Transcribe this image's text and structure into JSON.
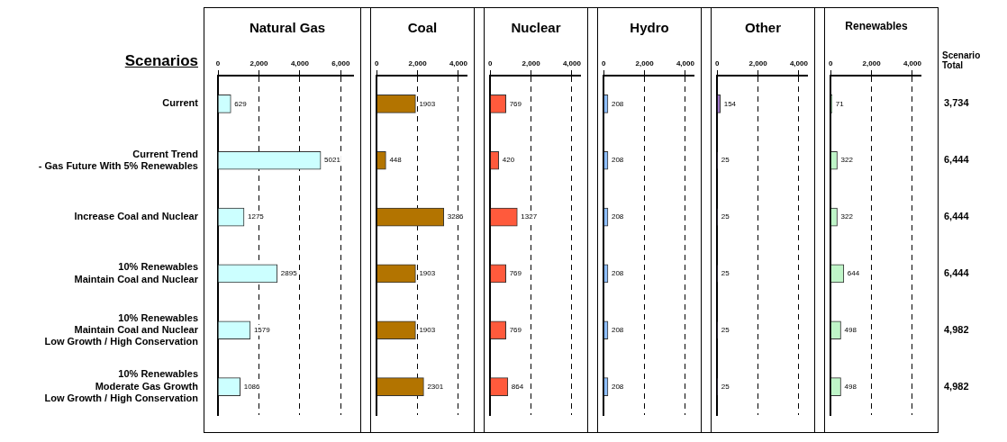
{
  "chart_data": [
    {
      "type": "bar",
      "orientation": "horizontal",
      "title": "Natural Gas",
      "ylabel": "Scenarios",
      "categories": [
        "Current",
        "Current Trend\n- Gas Future With 5% Renewables",
        "Increase Coal and Nuclear",
        "10% Renewables\nMaintain Coal and Nuclear",
        "10% Renewables\nMaintain Coal and Nuclear\nLow Growth / High Conservation",
        "10% Renewables\nModerate Gas Growth\nLow Growth / High Conservation"
      ],
      "values": [
        629,
        5021,
        1275,
        2895,
        1579,
        1086
      ],
      "color": "#ccffff",
      "xlim": [
        0,
        6600
      ],
      "xticks": [
        {
          "value": 0,
          "label": "0"
        },
        {
          "value": 2000,
          "label": "2,000"
        },
        {
          "value": 4000,
          "label": "4,000"
        },
        {
          "value": 6000,
          "label": "6,000"
        }
      ],
      "grid": "x",
      "data_labels": true
    },
    {
      "type": "bar",
      "orientation": "horizontal",
      "title": "Coal",
      "categories": [
        null,
        null,
        null,
        null,
        null,
        null
      ],
      "values": [
        1903,
        448,
        3286,
        1903,
        1903,
        2301
      ],
      "color": "#b37400",
      "xlim": [
        0,
        4400
      ],
      "xticks": [
        {
          "value": 0,
          "label": "0"
        },
        {
          "value": 2000,
          "label": "2,000"
        },
        {
          "value": 4000,
          "label": "4,000"
        }
      ],
      "grid": "x",
      "data_labels": true,
      "tick_labels": "x"
    },
    {
      "type": "bar",
      "orientation": "horizontal",
      "title": "Nuclear",
      "categories": [
        null,
        null,
        null,
        null,
        null,
        null
      ],
      "values": [
        769,
        420,
        1327,
        769,
        769,
        864
      ],
      "color": "#ff5a3c",
      "xlim": [
        0,
        4400
      ],
      "xticks": [
        {
          "value": 0,
          "label": "0"
        },
        {
          "value": 2000,
          "label": "2,000"
        },
        {
          "value": 4000,
          "label": "4,000"
        }
      ],
      "grid": "x",
      "data_labels": true,
      "tick_labels": "x"
    },
    {
      "type": "bar",
      "orientation": "horizontal",
      "title": "Hydro",
      "categories": [
        null,
        null,
        null,
        null,
        null,
        null
      ],
      "values": [
        208,
        208,
        208,
        208,
        208,
        208
      ],
      "color": "#8fbfff",
      "xlim": [
        0,
        4400
      ],
      "xticks": [
        {
          "value": 0,
          "label": "0"
        },
        {
          "value": 2000,
          "label": "2,000"
        },
        {
          "value": 4000,
          "label": "4,000"
        }
      ],
      "grid": "x",
      "data_labels": true,
      "tick_labels": "x"
    },
    {
      "type": "bar",
      "orientation": "horizontal",
      "title": "Other",
      "categories": [
        null,
        null,
        null,
        null,
        null,
        null
      ],
      "values": [
        154,
        25,
        25,
        25,
        25,
        25
      ],
      "color": "#a77fd0",
      "xlim": [
        0,
        4400
      ],
      "xticks": [
        {
          "value": 0,
          "label": "0"
        },
        {
          "value": 2000,
          "label": "2,000"
        },
        {
          "value": 4000,
          "label": "4,000"
        }
      ],
      "grid": "x",
      "data_labels": true,
      "tick_labels": "x"
    },
    {
      "type": "bar",
      "orientation": "horizontal",
      "title": "Renewables",
      "categories": [
        null,
        null,
        null,
        null,
        null,
        null
      ],
      "values": [
        71,
        322,
        322,
        644,
        498,
        498
      ],
      "color": "#bff5c8",
      "xlim": [
        0,
        4400
      ],
      "xticks": [
        {
          "value": 0,
          "label": "0"
        },
        {
          "value": 2000,
          "label": "2,000"
        },
        {
          "value": 4000,
          "label": "4,000"
        }
      ],
      "grid": "x",
      "data_labels": true,
      "tick_labels": "x"
    },
    {
      "type": "other",
      "title": "Scenario Total",
      "annotations": [
        "3,734",
        "6,444",
        "6,444",
        "6,444",
        "4,982",
        "4,982"
      ]
    }
  ]
}
